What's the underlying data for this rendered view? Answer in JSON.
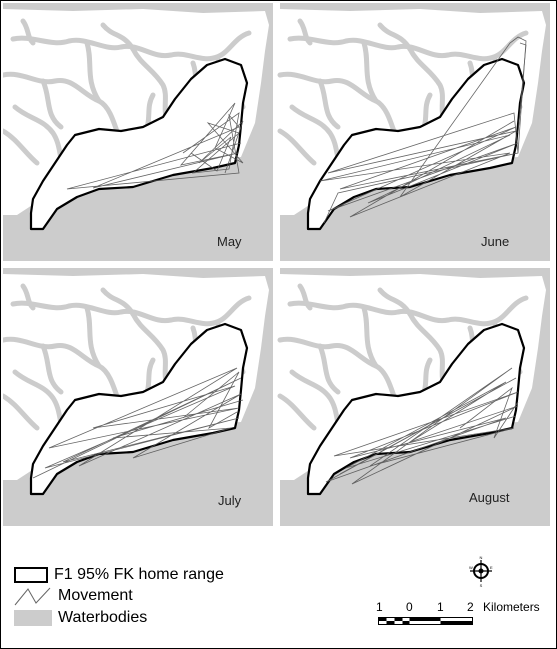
{
  "panels": [
    {
      "label": "May"
    },
    {
      "label": "June"
    },
    {
      "label": "July"
    },
    {
      "label": "August"
    }
  ],
  "legend": {
    "home_range": "F1 95% FK home range",
    "movement": "Movement",
    "waterbodies": "Waterbodies"
  },
  "scale": {
    "ticks": [
      "1",
      "0",
      "1",
      "2"
    ],
    "unit": "Kilometers"
  },
  "north_arrow": {
    "n": "N",
    "s": "S",
    "e": "E",
    "w": "W"
  },
  "colors": {
    "water": "#cccccc",
    "home_range_outline": "#000000",
    "movement": "#555555"
  }
}
